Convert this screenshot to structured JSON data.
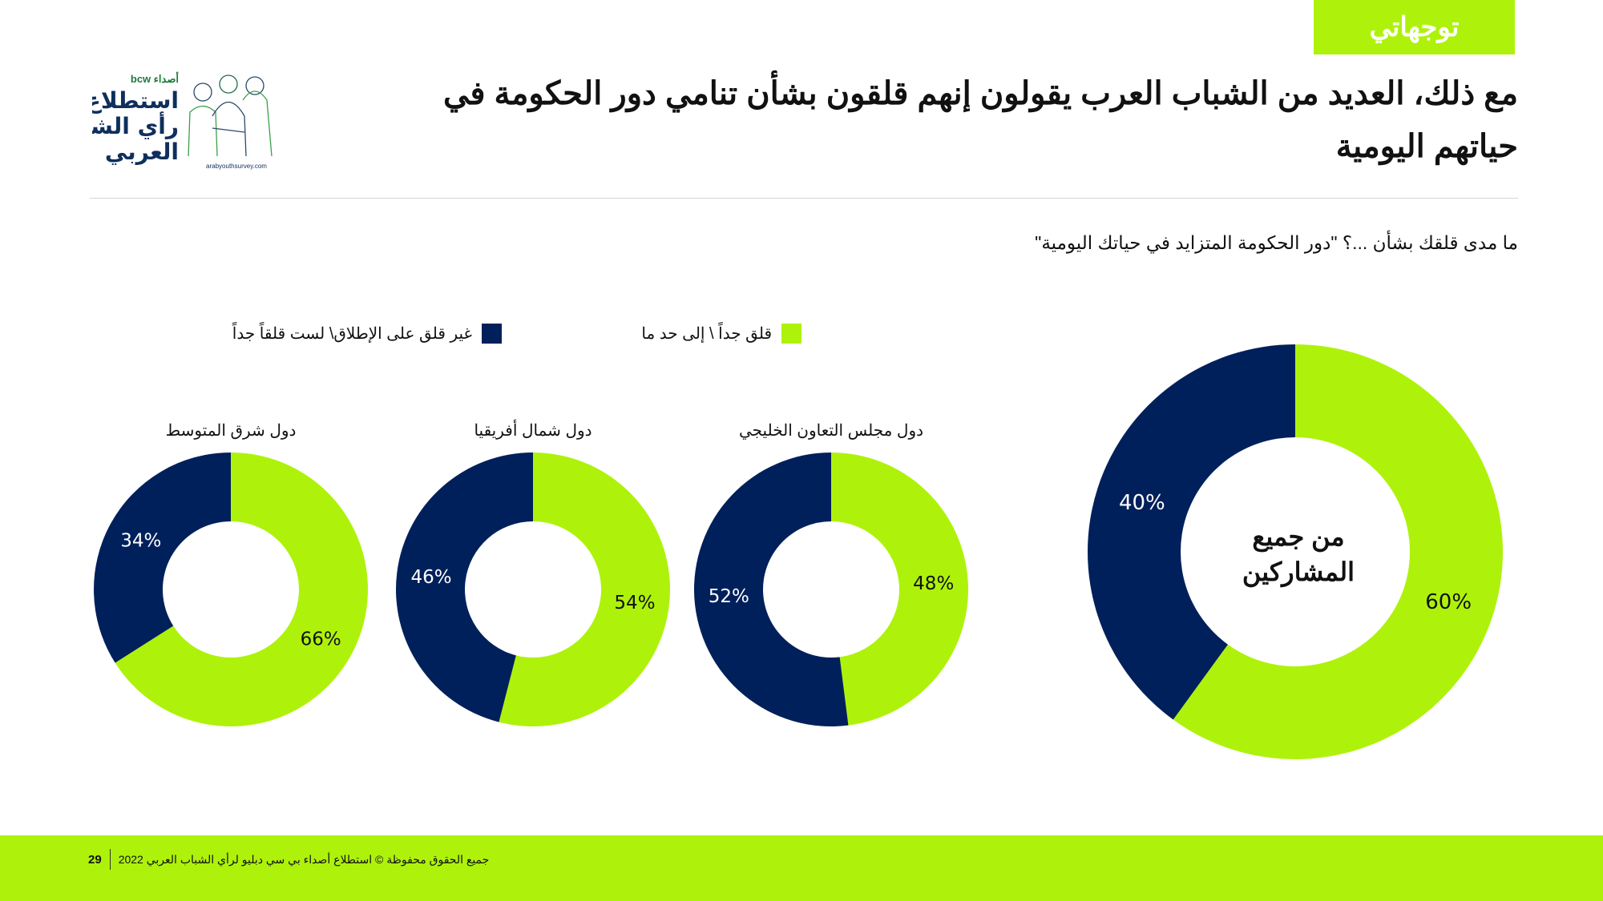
{
  "tag": "توجهاتي",
  "title": "مع ذلك، العديد من الشباب العرب يقولون إنهم قلقون بشأن تنامي دور الحكومة في حياتهم اليومية",
  "question": "ما مدى قلقك بشأن ...؟ \"دور الحكومة المتزايد في حياتك اليومية\"",
  "logo": {
    "brand": "bcw أصداء",
    "name": "استطلاع رأي الشباب العربي",
    "url": "arabyouthsurvey.com"
  },
  "footer": {
    "page": "29",
    "text": "جميع الحقوق محفوظة © استطلاع أصداء بي سي دبليو لرأي الشباب العربي 2022"
  },
  "colors": {
    "concerned": "#aef20b",
    "not_concerned": "#00205b"
  },
  "chart_data": {
    "type": "pie",
    "variant": "donut",
    "legend": [
      "قلق جداً \\ إلى حد ما",
      "غير قلق على الإطلاق\\ لست قلقاً جداً"
    ],
    "legend_placement": "top",
    "charts": [
      {
        "title": "من جميع المشاركين",
        "values": [
          60,
          40
        ],
        "labels": [
          "60%",
          "40%"
        ]
      },
      {
        "title": "دول مجلس التعاون الخليجي",
        "values": [
          48,
          52
        ],
        "labels": [
          "48%",
          "52%"
        ]
      },
      {
        "title": "دول شمال أفريقيا",
        "values": [
          54,
          46
        ],
        "labels": [
          "54%",
          "46%"
        ]
      },
      {
        "title": "دول شرق المتوسط",
        "values": [
          66,
          34
        ],
        "labels": [
          "66%",
          "34%"
        ]
      }
    ]
  }
}
